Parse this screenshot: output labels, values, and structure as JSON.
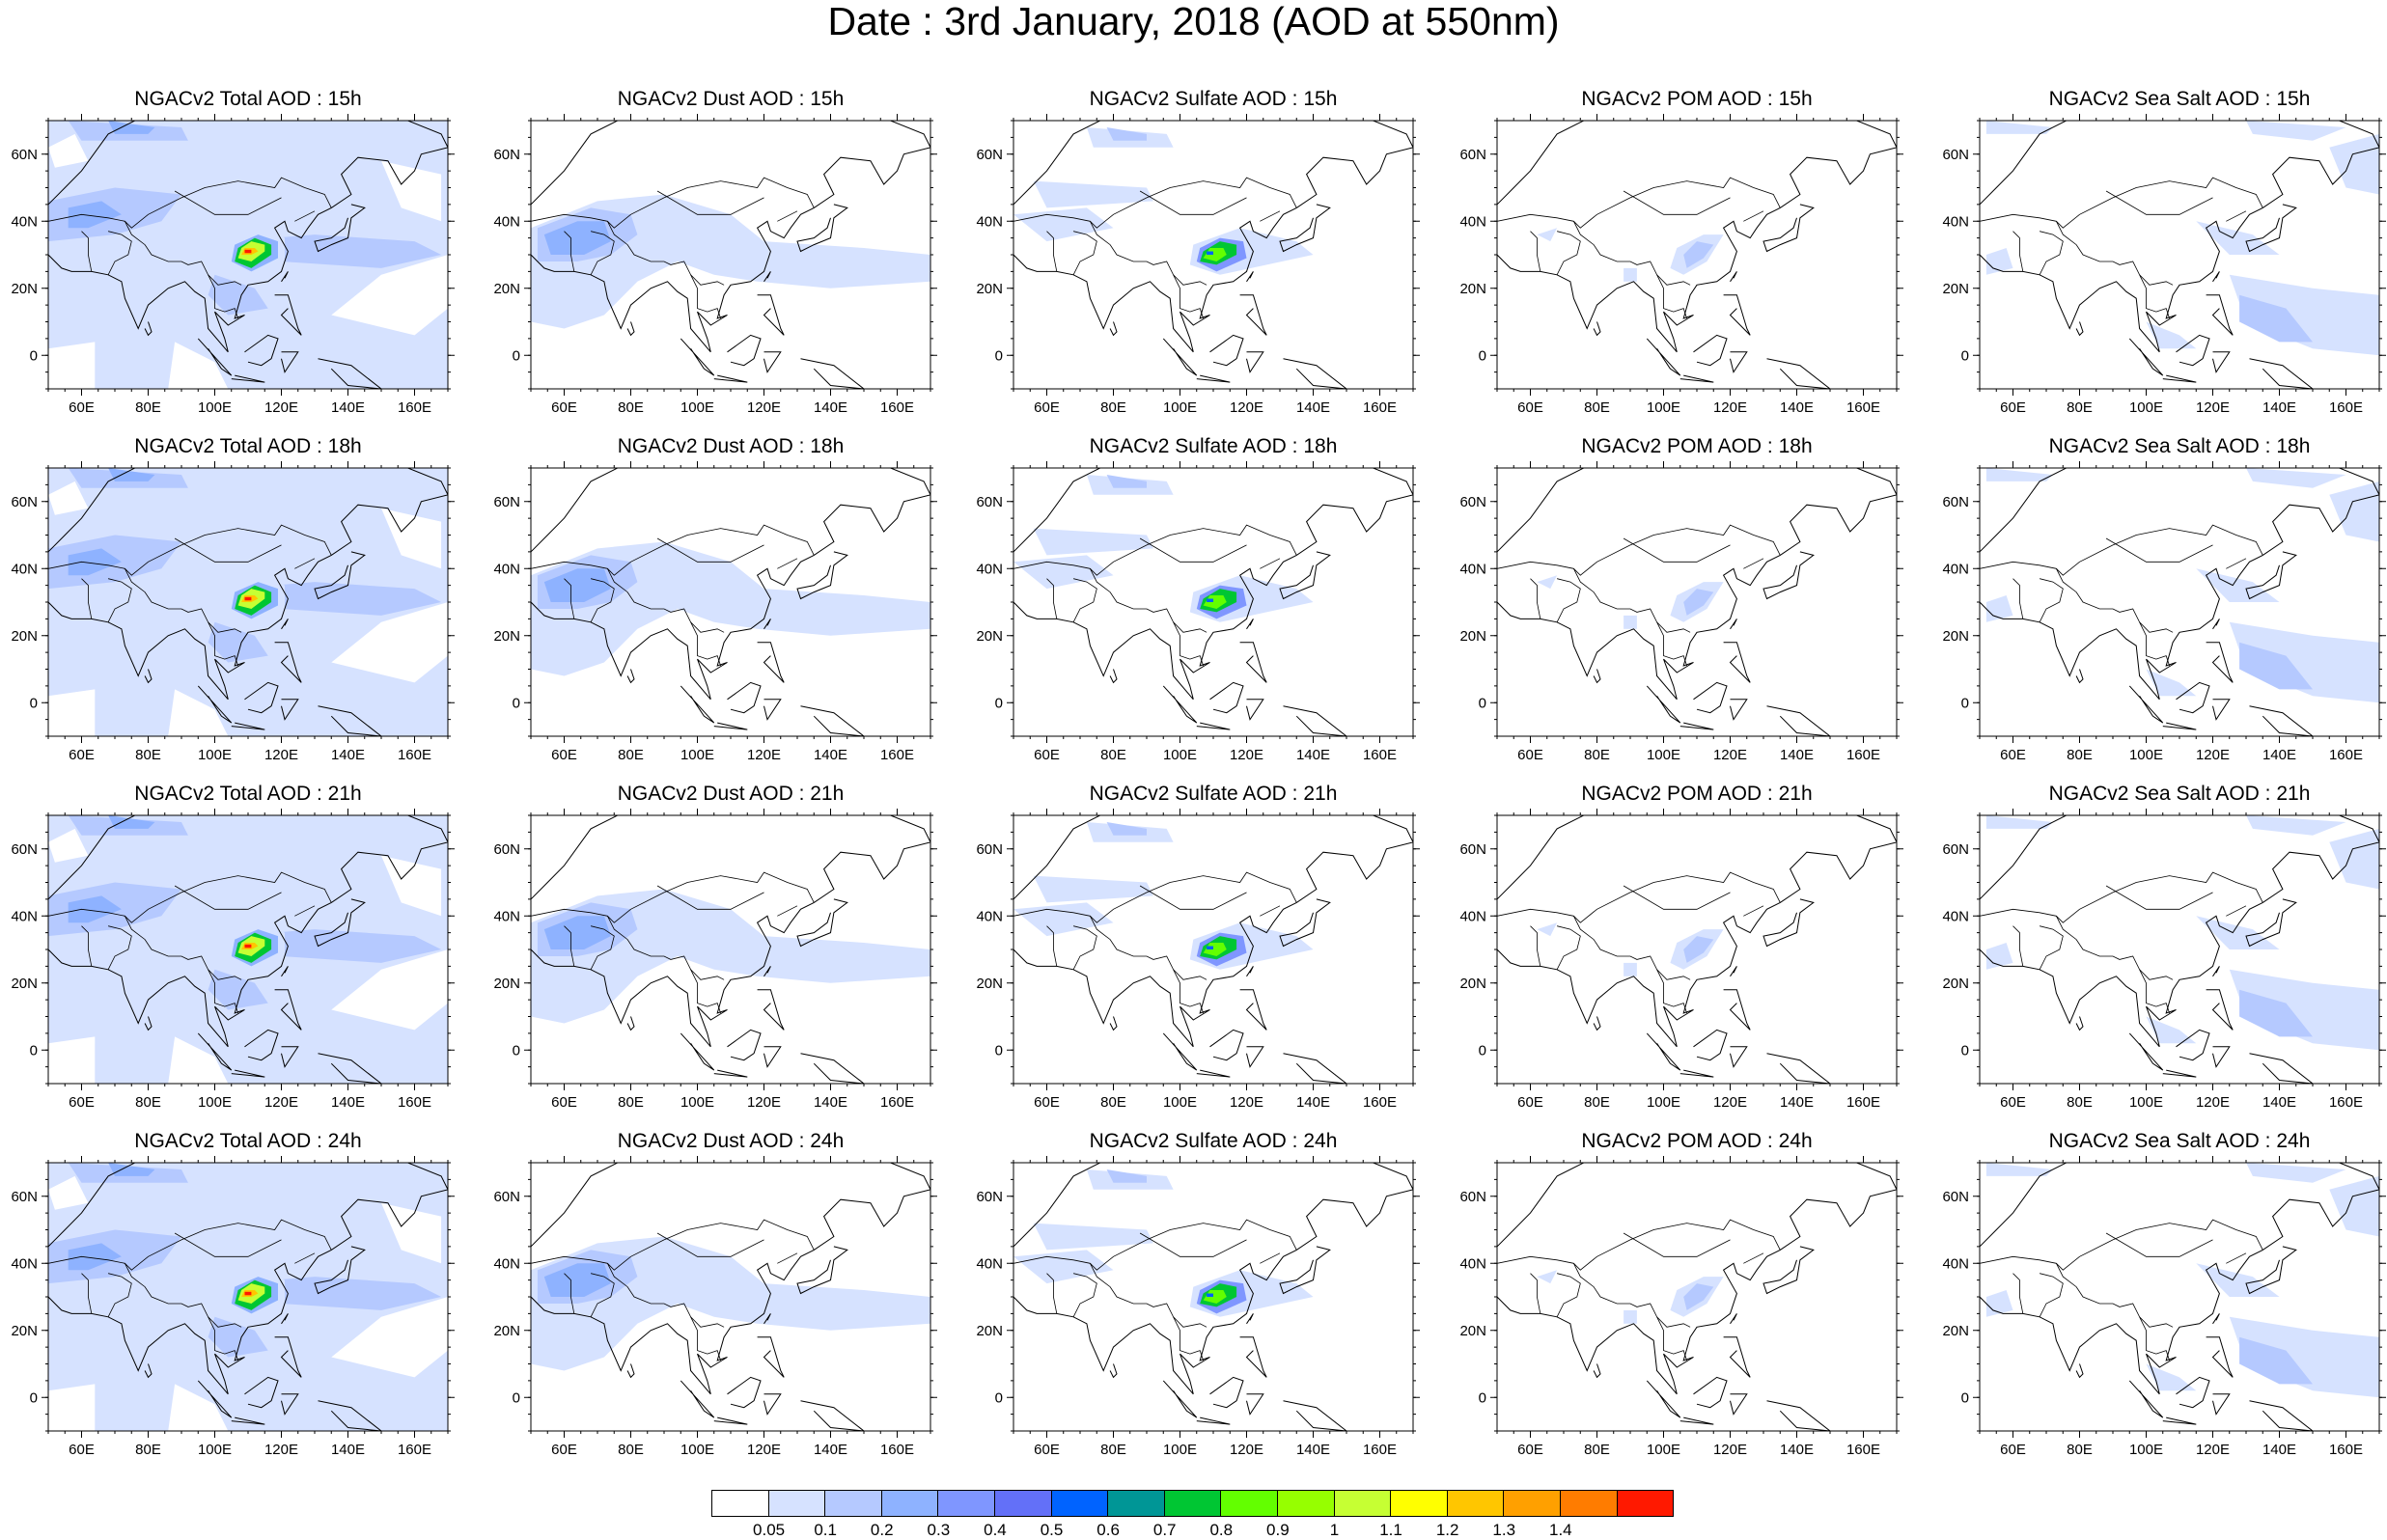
{
  "figure": {
    "title": "Date : 3rd January, 2018 (AOD at 550nm)"
  },
  "axes": {
    "x_ticks": [
      "60E",
      "80E",
      "100E",
      "120E",
      "140E",
      "160E"
    ],
    "y_ticks": [
      "60N",
      "40N",
      "20N",
      "0"
    ]
  },
  "rows": [
    "15h",
    "18h",
    "21h",
    "24h"
  ],
  "columns": [
    "Total",
    "Dust",
    "Sulfate",
    "POM",
    "Sea Salt"
  ],
  "panels": [
    [
      "NGACv2 Total AOD : 15h",
      "NGACv2 Dust AOD : 15h",
      "NGACv2 Sulfate AOD : 15h",
      "NGACv2 POM AOD : 15h",
      "NGACv2 Sea Salt AOD : 15h"
    ],
    [
      "NGACv2 Total AOD : 18h",
      "NGACv2 Dust AOD : 18h",
      "NGACv2 Sulfate AOD : 18h",
      "NGACv2 POM AOD : 18h",
      "NGACv2 Sea Salt AOD : 18h"
    ],
    [
      "NGACv2 Total AOD : 21h",
      "NGACv2 Dust AOD : 21h",
      "NGACv2 Sulfate AOD : 21h",
      "NGACv2 POM AOD : 21h",
      "NGACv2 Sea Salt AOD : 21h"
    ],
    [
      "NGACv2 Total AOD : 24h",
      "NGACv2 Dust AOD : 24h",
      "NGACv2 Sulfate AOD : 24h",
      "NGACv2 POM AOD : 24h",
      "NGACv2 Sea Salt  AOD : 24h"
    ]
  ],
  "colorbar": {
    "labels": [
      "0.05",
      "0.1",
      "0.2",
      "0.3",
      "0.4",
      "0.5",
      "0.6",
      "0.7",
      "0.8",
      "0.9",
      "1",
      "1.1",
      "1.2",
      "1.3",
      "1.4"
    ],
    "colors": [
      "#ffffff",
      "#d6e2ff",
      "#b5c9ff",
      "#8eb2ff",
      "#7f96ff",
      "#6370f8",
      "#0063ff",
      "#009696",
      "#00c633",
      "#63ff00",
      "#96ff00",
      "#c6ff33",
      "#ffff00",
      "#ffc600",
      "#ffa000",
      "#ff7c00",
      "#ff1900"
    ]
  }
}
